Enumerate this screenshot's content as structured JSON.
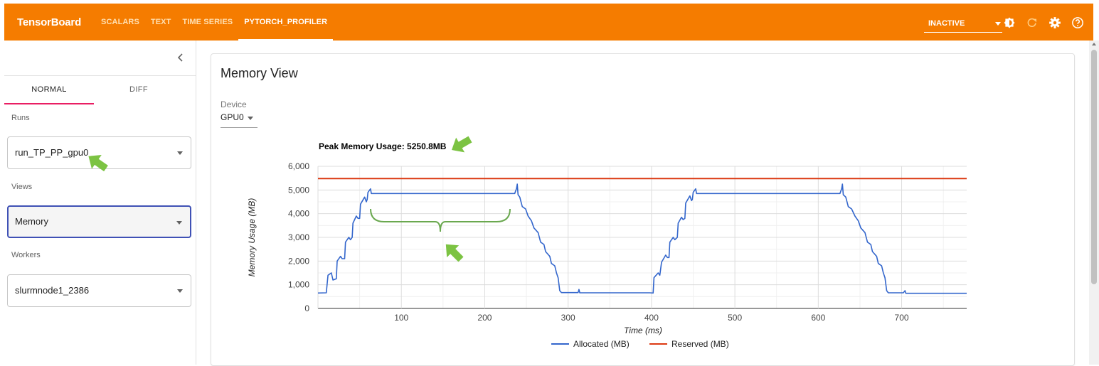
{
  "app": {
    "brand": "TensorBoard",
    "tabs": [
      {
        "label": "SCALARS"
      },
      {
        "label": "TEXT"
      },
      {
        "label": "TIME SERIES"
      },
      {
        "label": "PYTORCH_PROFILER"
      }
    ],
    "status_select": "INACTIVE",
    "icons": [
      "theme-toggle-icon",
      "reload-icon",
      "settings-icon",
      "help-icon"
    ],
    "colors": {
      "bar": "#f57c00",
      "active_tab_underline": "#e91e63",
      "focused_select": "#3f51b5"
    }
  },
  "sidebar": {
    "mode_tabs": [
      {
        "label": "NORMAL"
      },
      {
        "label": "DIFF"
      }
    ],
    "runs_label": "Runs",
    "runs_value": "run_TP_PP_gpu0",
    "views_label": "Views",
    "views_value": "Memory",
    "workers_label": "Workers",
    "workers_value": "slurmnode1_2386"
  },
  "main": {
    "title": "Memory View",
    "device_label": "Device",
    "device_value": "GPU0",
    "peak_label": "Peak Memory Usage: 5250.8MB",
    "annotation_color": "#7cc343"
  },
  "chart_data": {
    "type": "line",
    "xlabel": "Time (ms)",
    "ylabel": "Memory Usage (MB)",
    "xlim": [
      0,
      778
    ],
    "ylim": [
      0,
      6000
    ],
    "xticks": [
      100,
      200,
      300,
      400,
      500,
      600,
      700
    ],
    "yticks": [
      0,
      1000,
      2000,
      3000,
      4000,
      5000,
      6000
    ],
    "ytick_labels": [
      "0",
      "1,000",
      "2,000",
      "3,000",
      "4,000",
      "5,000",
      "6,000"
    ],
    "grid": true,
    "legend": "bottom",
    "series": [
      {
        "name": "Allocated (MB)",
        "color": "#3366cc",
        "points": [
          [
            0,
            650
          ],
          [
            10,
            660
          ],
          [
            12,
            1400
          ],
          [
            16,
            1500
          ],
          [
            18,
            1200
          ],
          [
            22,
            1250
          ],
          [
            23,
            2000
          ],
          [
            27,
            2200
          ],
          [
            29,
            2100
          ],
          [
            32,
            2100
          ],
          [
            33,
            2800
          ],
          [
            37,
            3000
          ],
          [
            39,
            2900
          ],
          [
            41,
            3000
          ],
          [
            42,
            3600
          ],
          [
            46,
            3900
          ],
          [
            48,
            3800
          ],
          [
            50,
            3800
          ],
          [
            51,
            4400
          ],
          [
            56,
            4700
          ],
          [
            58,
            4500
          ],
          [
            59,
            4600
          ],
          [
            60,
            4900
          ],
          [
            63,
            5050
          ],
          [
            64,
            4850
          ],
          [
            236,
            4850
          ],
          [
            238,
            5050
          ],
          [
            239,
            5250
          ],
          [
            240,
            4800
          ],
          [
            242,
            4700
          ],
          [
            245,
            4300
          ],
          [
            249,
            4200
          ],
          [
            252,
            3900
          ],
          [
            256,
            3700
          ],
          [
            259,
            3400
          ],
          [
            264,
            3200
          ],
          [
            267,
            2800
          ],
          [
            271,
            2700
          ],
          [
            273,
            2400
          ],
          [
            278,
            2200
          ],
          [
            280,
            1900
          ],
          [
            284,
            1800
          ],
          [
            286,
            1500
          ],
          [
            288,
            1300
          ],
          [
            290,
            750
          ],
          [
            292,
            670
          ],
          [
            312,
            670
          ],
          [
            313,
            800
          ],
          [
            314,
            660
          ],
          [
            398,
            660
          ],
          [
            402,
            650
          ],
          [
            403,
            1300
          ],
          [
            408,
            1500
          ],
          [
            410,
            1400
          ],
          [
            412,
            1950
          ],
          [
            417,
            2250
          ],
          [
            419,
            2150
          ],
          [
            421,
            2150
          ],
          [
            422,
            2800
          ],
          [
            426,
            3000
          ],
          [
            428,
            2900
          ],
          [
            431,
            3000
          ],
          [
            432,
            3600
          ],
          [
            436,
            3850
          ],
          [
            438,
            3750
          ],
          [
            440,
            3800
          ],
          [
            441,
            4450
          ],
          [
            446,
            4750
          ],
          [
            448,
            4550
          ],
          [
            449,
            4600
          ],
          [
            450,
            4900
          ],
          [
            453,
            5050
          ],
          [
            454,
            4850
          ],
          [
            626,
            4850
          ],
          [
            628,
            5050
          ],
          [
            629,
            5250
          ],
          [
            630,
            4800
          ],
          [
            633,
            4700
          ],
          [
            636,
            4300
          ],
          [
            640,
            4200
          ],
          [
            644,
            3900
          ],
          [
            648,
            3700
          ],
          [
            651,
            3400
          ],
          [
            656,
            3200
          ],
          [
            659,
            2800
          ],
          [
            663,
            2700
          ],
          [
            665,
            2400
          ],
          [
            670,
            2200
          ],
          [
            672,
            1900
          ],
          [
            676,
            1800
          ],
          [
            678,
            1500
          ],
          [
            680,
            1300
          ],
          [
            682,
            750
          ],
          [
            684,
            660
          ],
          [
            702,
            660
          ],
          [
            704,
            750
          ],
          [
            705,
            640
          ],
          [
            778,
            640
          ]
        ]
      },
      {
        "name": "Reserved (MB)",
        "color": "#dc3912",
        "points": [
          [
            0,
            5480
          ],
          [
            778,
            5480
          ]
        ]
      }
    ]
  }
}
